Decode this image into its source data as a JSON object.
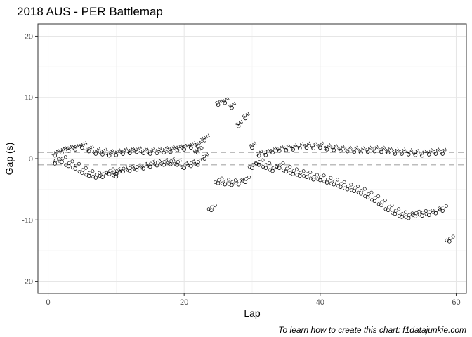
{
  "chart_data": {
    "type": "scatter",
    "title": "2018 AUS - PER Battlemap",
    "xlabel": "Lap",
    "ylabel": "Gap (s)",
    "caption": "To learn how to create this chart: f1datajunkie.com",
    "xlim": [
      -1.5,
      61.5
    ],
    "ylim": [
      -22,
      22
    ],
    "xticks": [
      0,
      20,
      40,
      60
    ],
    "yticks": [
      -20,
      -10,
      0,
      10,
      20
    ],
    "grid": true,
    "reference_lines": [
      1,
      -1
    ],
    "series": [
      {
        "label": "VAN",
        "points": [
          [
            1,
            0.5
          ],
          [
            2,
            1.0
          ],
          [
            3,
            1.3
          ],
          [
            4,
            1.5
          ],
          [
            5,
            1.8
          ],
          [
            6,
            1.2
          ],
          [
            7,
            0.8
          ],
          [
            8,
            0.7
          ],
          [
            9,
            0.5
          ],
          [
            10,
            0.6
          ],
          [
            11,
            0.8
          ],
          [
            12,
            0.9
          ],
          [
            13,
            1.1
          ],
          [
            14,
            0.9
          ],
          [
            15,
            0.8
          ],
          [
            16,
            0.9
          ],
          [
            17,
            1.0
          ],
          [
            18,
            1.1
          ],
          [
            19,
            1.4
          ],
          [
            20,
            1.5
          ],
          [
            21,
            1.8
          ],
          [
            22,
            2.0
          ],
          [
            23,
            3.0
          ]
        ]
      },
      {
        "label": "OCO",
        "points": [
          [
            1,
            -0.8
          ],
          [
            2,
            -0.5
          ],
          [
            3,
            -1.2
          ],
          [
            4,
            -1.6
          ],
          [
            5,
            -2.3
          ],
          [
            6,
            -2.8
          ],
          [
            7,
            -3.1
          ],
          [
            8,
            -3.0
          ],
          [
            9,
            -2.5
          ],
          [
            10,
            -2.9
          ],
          [
            24,
            -8.4
          ],
          [
            25,
            -4.0
          ],
          [
            26,
            -4.2
          ],
          [
            27,
            -4.3
          ],
          [
            28,
            -4.2
          ],
          [
            29,
            -3.8
          ],
          [
            30,
            -1.5
          ],
          [
            31,
            -1.0
          ],
          [
            32,
            -1.5
          ],
          [
            33,
            -2.0
          ],
          [
            34,
            -1.5
          ],
          [
            35,
            -2.1
          ],
          [
            36,
            -2.5
          ],
          [
            37,
            -2.8
          ],
          [
            38,
            -3.0
          ],
          [
            39,
            -3.4
          ],
          [
            40,
            -3.5
          ],
          [
            41,
            -3.9
          ],
          [
            42,
            -4.2
          ],
          [
            43,
            -4.6
          ],
          [
            44,
            -5.0
          ],
          [
            45,
            -5.3
          ],
          [
            46,
            -5.7
          ],
          [
            47,
            -6.3
          ],
          [
            48,
            -6.9
          ],
          [
            49,
            -7.6
          ],
          [
            50,
            -8.4
          ],
          [
            51,
            -9.0
          ],
          [
            52,
            -9.5
          ],
          [
            53,
            -9.7
          ],
          [
            54,
            -9.4
          ],
          [
            55,
            -9.3
          ],
          [
            56,
            -9.2
          ],
          [
            57,
            -8.9
          ],
          [
            58,
            -8.5
          ],
          [
            59,
            -13.5
          ]
        ]
      },
      {
        "label": "BOT",
        "points": [
          [
            10,
            -2.5
          ],
          [
            11,
            -2.1
          ],
          [
            12,
            -2.0
          ],
          [
            13,
            -1.8
          ],
          [
            14,
            -1.6
          ],
          [
            15,
            -1.3
          ],
          [
            16,
            -1.1
          ],
          [
            17,
            -1.0
          ],
          [
            18,
            -0.9
          ],
          [
            19,
            -1.0
          ],
          [
            20,
            -1.5
          ],
          [
            21,
            -1.2
          ],
          [
            22,
            -1.0
          ]
        ]
      },
      {
        "label": "MAG",
        "points": [
          [
            22,
            1.0
          ]
        ]
      },
      {
        "label": "SAI",
        "points": [
          [
            23,
            0.0
          ],
          [
            25,
            8.8
          ],
          [
            26,
            9.1
          ],
          [
            27,
            8.3
          ],
          [
            28,
            5.3
          ],
          [
            29,
            6.6
          ],
          [
            30,
            1.8
          ],
          [
            31,
            0.5
          ],
          [
            32,
            0.6
          ],
          [
            33,
            1.0
          ],
          [
            34,
            1.3
          ],
          [
            35,
            1.4
          ],
          [
            36,
            1.5
          ],
          [
            37,
            1.7
          ],
          [
            38,
            1.8
          ],
          [
            39,
            1.7
          ],
          [
            40,
            1.8
          ],
          [
            41,
            1.5
          ],
          [
            42,
            1.4
          ],
          [
            43,
            1.3
          ],
          [
            44,
            1.2
          ],
          [
            45,
            1.1
          ],
          [
            46,
            1.0
          ],
          [
            47,
            1.1
          ],
          [
            48,
            1.2
          ],
          [
            49,
            1.1
          ],
          [
            50,
            1.0
          ],
          [
            51,
            0.8
          ],
          [
            52,
            0.8
          ],
          [
            53,
            0.7
          ],
          [
            54,
            0.6
          ],
          [
            55,
            0.5
          ],
          [
            56,
            0.7
          ],
          [
            57,
            0.8
          ],
          [
            58,
            0.8
          ]
        ]
      }
    ]
  }
}
